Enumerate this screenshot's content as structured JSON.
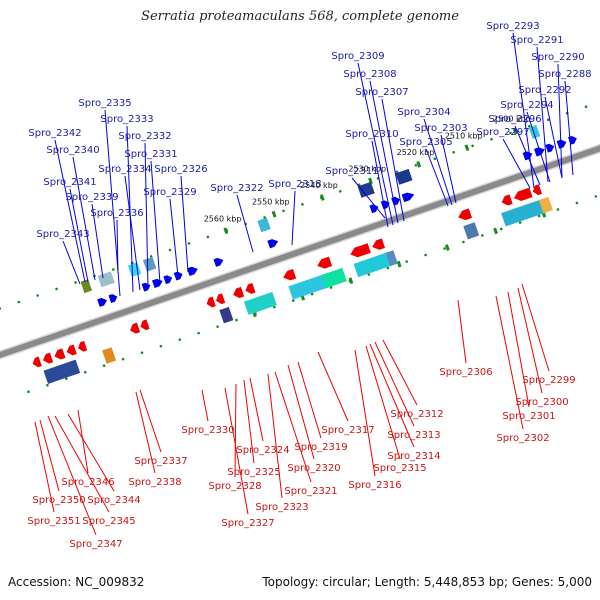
{
  "title": "Serratia proteamaculans 568, complete genome",
  "footer": {
    "accession": "Accession: NC_009832",
    "stats": "Topology: circular; Length: 5,448,853 bp; Genes: 5,000"
  },
  "colors": {
    "forward": "#0000e6",
    "reverse": "#ee0000",
    "backbone": "#8a8a8a",
    "tick": "#1a8a1a",
    "forward_label": "#1a1aa8",
    "reverse_label": "#c81414"
  },
  "scale_labels": [
    "2500 kbp",
    "2510 kbp",
    "2520 kbp",
    "2530 kbp",
    "2540 kbp",
    "2550 kbp",
    "2560 kbp"
  ],
  "forward_labels": [
    "Spro_2293",
    "Spro_2291",
    "Spro_2290",
    "Spro_2288",
    "Spro_2292",
    "Spro_2294",
    "Spro_2296",
    "Spro_2297",
    "Spro_2309",
    "Spro_2308",
    "Spro_2307",
    "Spro_2304",
    "Spro_2303",
    "Spro_2305",
    "Spro_2310",
    "Spro_2311",
    "Spro_2318",
    "Spro_2322",
    "Spro_2335",
    "Spro_2333",
    "Spro_2332",
    "Spro_2331",
    "Spro_2326",
    "Spro_2334",
    "Spro_2329",
    "Spro_2342",
    "Spro_2340",
    "Spro_2341",
    "Spro_2339",
    "Spro_2336",
    "Spro_2343"
  ],
  "reverse_labels": [
    "Spro_2306",
    "Spro_2299",
    "Spro_2300",
    "Spro_2301",
    "Spro_2302",
    "Spro_2312",
    "Spro_2313",
    "Spro_2314",
    "Spro_2315",
    "Spro_2316",
    "Spro_2317",
    "Spro_2319",
    "Spro_2320",
    "Spro_2321",
    "Spro_2323",
    "Spro_2324",
    "Spro_2325",
    "Spro_2328",
    "Spro_2327",
    "Spro_2330",
    "Spro_2337",
    "Spro_2338",
    "Spro_2346",
    "Spro_2344",
    "Spro_2350",
    "Spro_2345",
    "Spro_2351",
    "Spro_2347"
  ]
}
